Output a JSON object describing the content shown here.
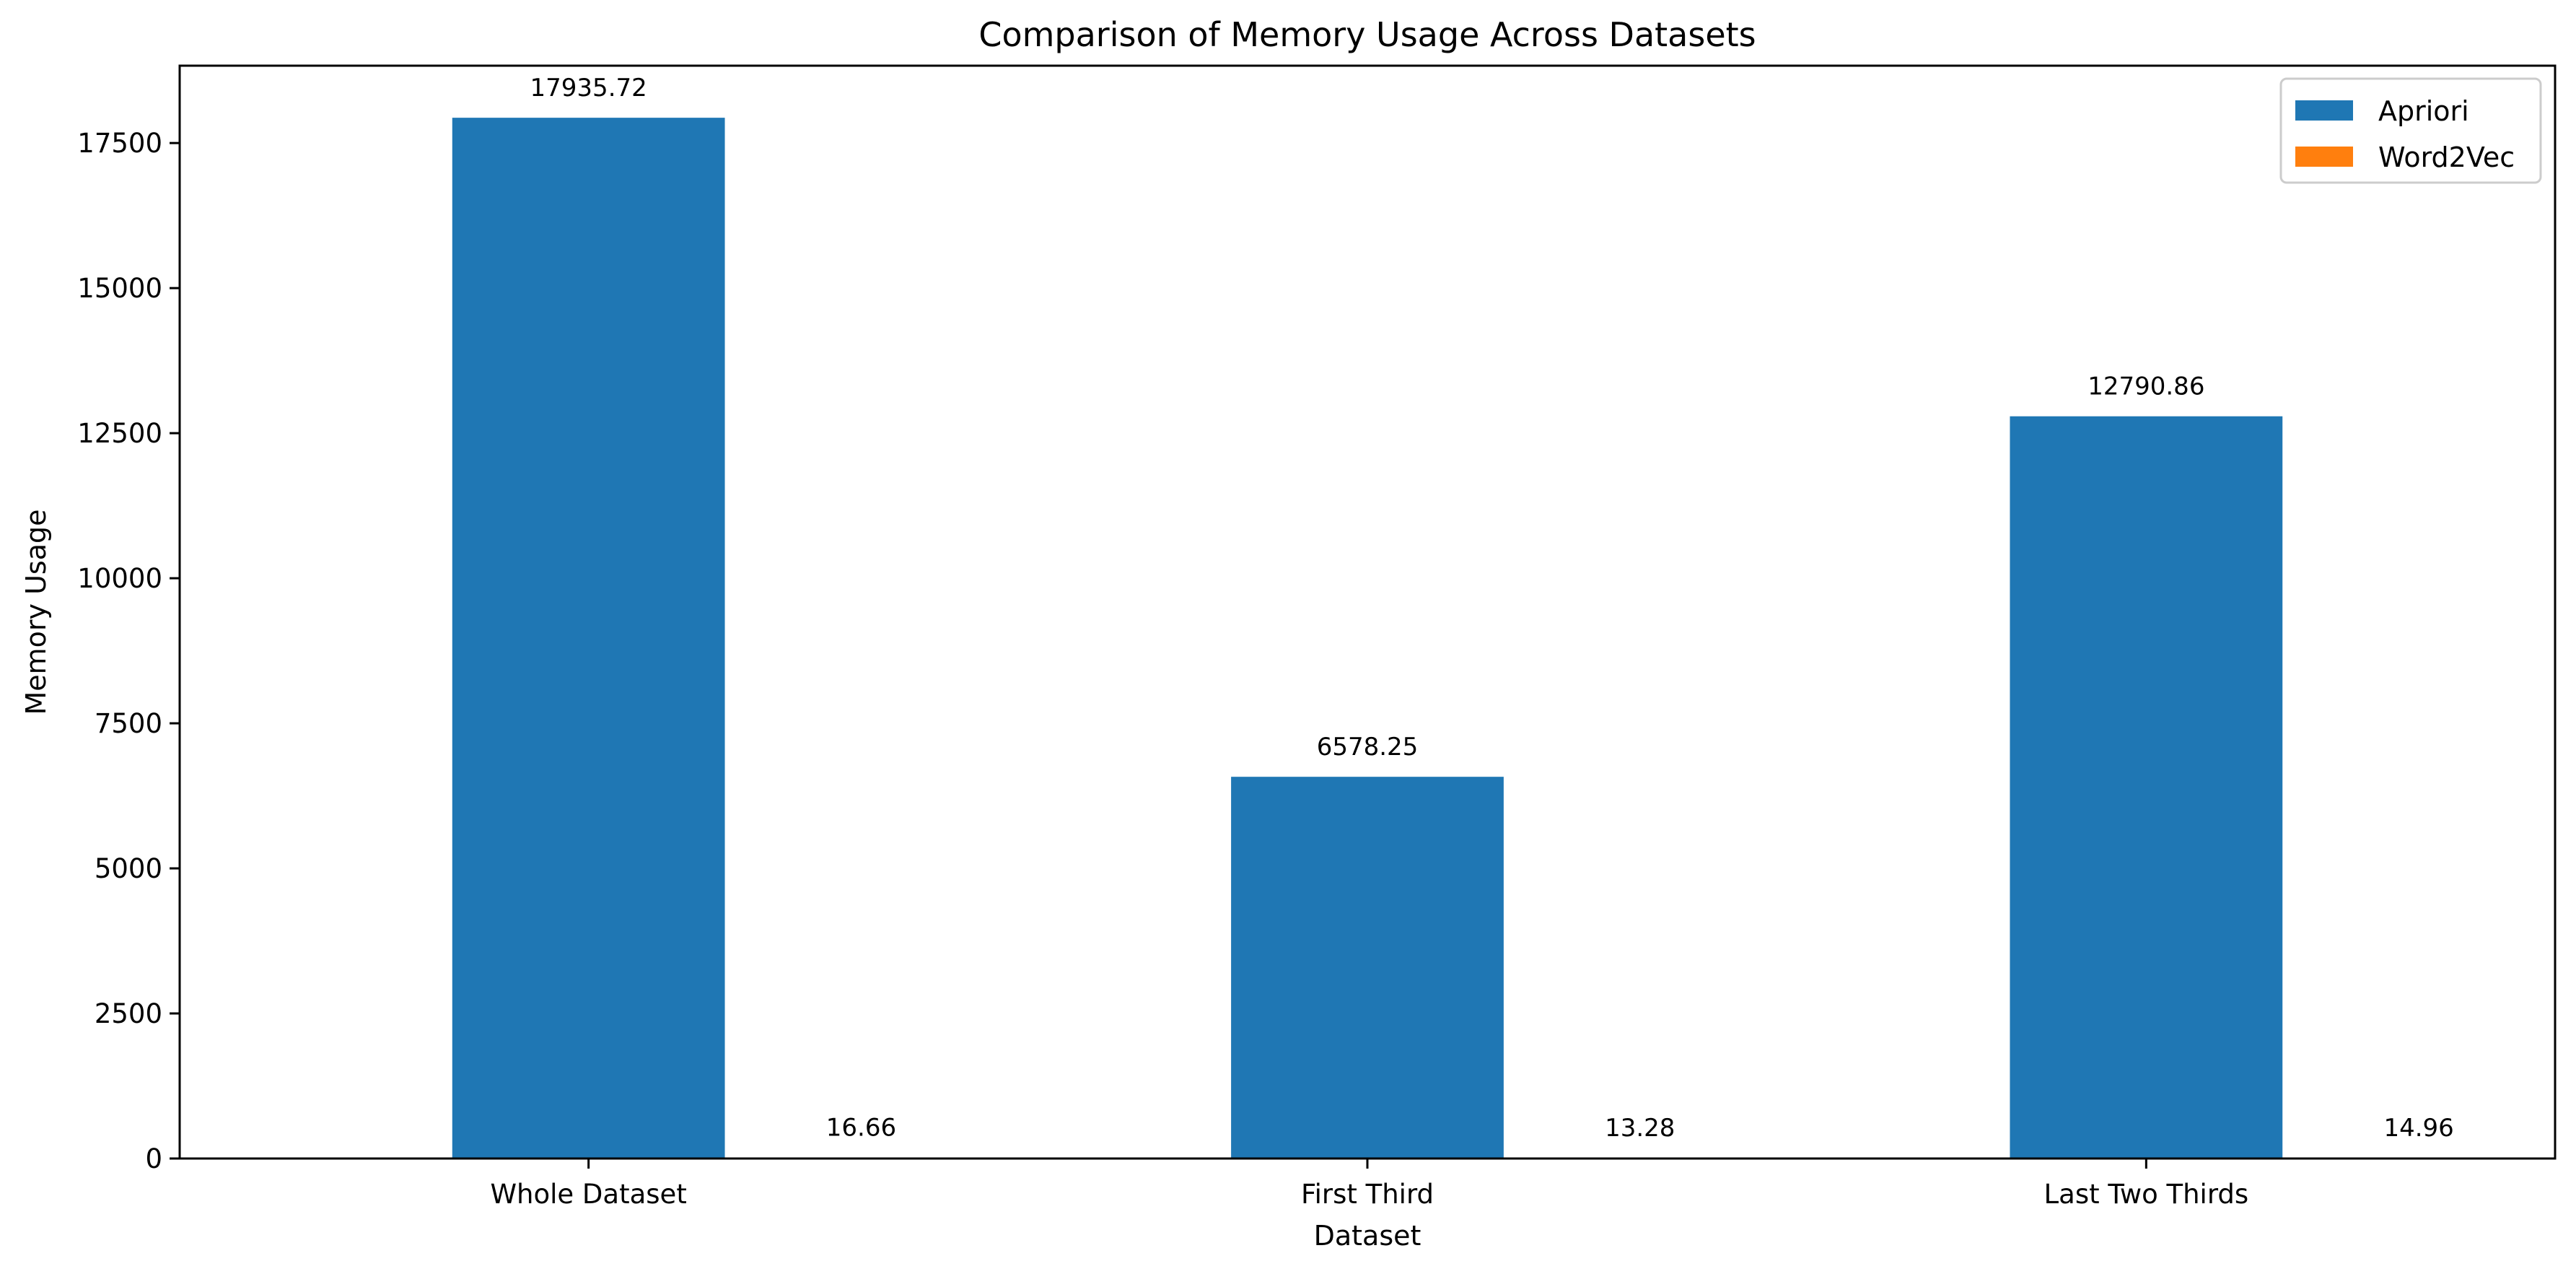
{
  "chart_data": {
    "type": "bar",
    "title": "Comparison of Memory Usage Across Datasets",
    "xlabel": "Dataset",
    "ylabel": "Memory Usage",
    "categories": [
      "Whole Dataset",
      "First Third",
      "Last Two Thirds"
    ],
    "series": [
      {
        "name": "Apriori",
        "color": "#1f77b4",
        "values": [
          17935.72,
          6578.25,
          12790.86
        ],
        "labels": [
          "17935.72",
          "6578.25",
          "12790.86"
        ]
      },
      {
        "name": "Word2Vec",
        "color": "#ff7f0e",
        "values": [
          16.66,
          13.28,
          14.96
        ],
        "labels": [
          "16.66",
          "13.28",
          "14.96"
        ]
      }
    ],
    "ylim": [
      0,
      18833
    ],
    "yticks": [
      0,
      2500,
      5000,
      7500,
      10000,
      12500,
      15000,
      17500
    ],
    "ytick_labels": [
      "0",
      "2500",
      "5000",
      "7500",
      "10000",
      "12500",
      "15000",
      "17500"
    ],
    "grid": false,
    "legend_position": "top-right"
  }
}
